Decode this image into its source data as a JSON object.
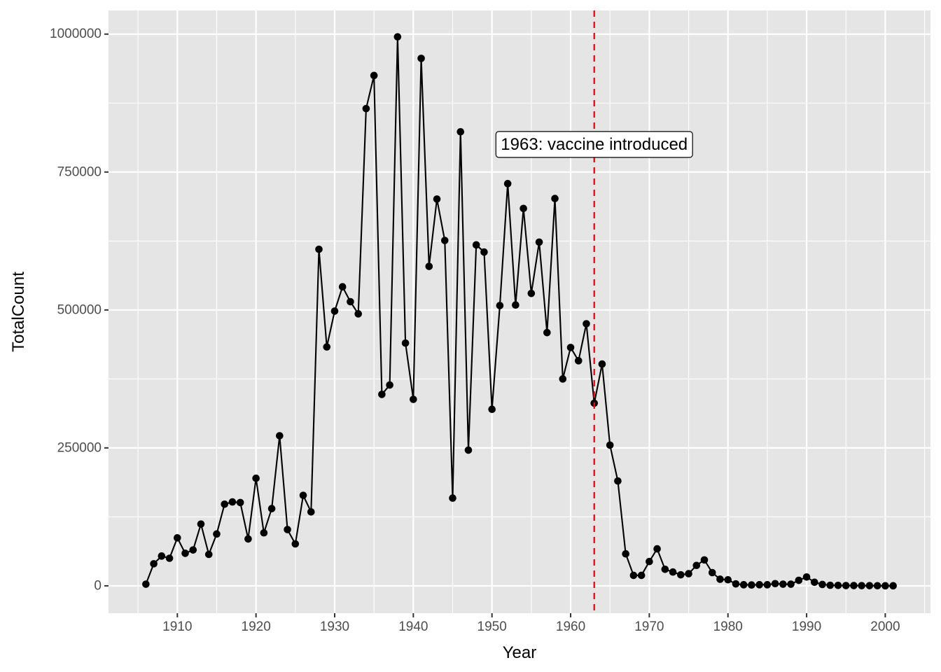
{
  "chart_data": {
    "type": "line",
    "title": "",
    "xlabel": "Year",
    "ylabel": "TotalCount",
    "xlim": [
      1901.25,
      2005.75
    ],
    "ylim": [
      -49590,
      1042800
    ],
    "x_ticks": [
      1910,
      1920,
      1930,
      1940,
      1950,
      1960,
      1970,
      1980,
      1990,
      2000
    ],
    "x_tick_labels": [
      "1910",
      "1920",
      "1930",
      "1940",
      "1950",
      "1960",
      "1970",
      "1980",
      "1990",
      "2000"
    ],
    "y_ticks": [
      0,
      250000,
      500000,
      750000,
      1000000
    ],
    "y_tick_labels": [
      "0",
      "250000",
      "500000",
      "750000",
      "1000000"
    ],
    "grid": true,
    "legend": "none",
    "colors": {
      "panel_bg": "#e5e5e5",
      "grid": "#ffffff",
      "line": "#000000",
      "point": "#000000",
      "vline": "#ff0000",
      "annotation_fill": "#ffffff",
      "annotation_border": "#000000"
    },
    "series": [
      {
        "x": [
          1906,
          1907,
          1908,
          1909,
          1910,
          1911,
          1912,
          1913,
          1914,
          1915,
          1916,
          1917,
          1918,
          1919,
          1920,
          1921,
          1922,
          1923,
          1924,
          1925,
          1926,
          1927,
          1928,
          1929,
          1930,
          1931,
          1932,
          1933,
          1934,
          1935,
          1936,
          1937,
          1938,
          1939,
          1940,
          1941,
          1942,
          1943,
          1944,
          1945,
          1946,
          1947,
          1948,
          1949,
          1950,
          1951,
          1952,
          1953,
          1954,
          1955,
          1956,
          1957,
          1958,
          1959,
          1960,
          1961,
          1962,
          1963,
          1964,
          1965,
          1966,
          1967,
          1968,
          1969,
          1970,
          1971,
          1972,
          1973,
          1974,
          1975,
          1976,
          1977,
          1978,
          1979,
          1980,
          1981,
          1982,
          1983,
          1984,
          1985,
          1986,
          1987,
          1988,
          1989,
          1990,
          1991,
          1992,
          1993,
          1994,
          1995,
          1996,
          1997,
          1998,
          1999,
          2000,
          2001
        ],
        "values": [
          3000,
          40000,
          54000,
          50000,
          87000,
          59000,
          65000,
          112000,
          57000,
          94000,
          148000,
          152000,
          151000,
          85000,
          195000,
          96000,
          140000,
          272000,
          102000,
          76000,
          164000,
          134000,
          610000,
          433000,
          498000,
          542000,
          515000,
          493000,
          865000,
          925000,
          347000,
          364000,
          995000,
          440000,
          338000,
          956000,
          579000,
          701000,
          626000,
          159000,
          823000,
          246000,
          618000,
          605000,
          320000,
          508000,
          729000,
          509000,
          684000,
          530000,
          623000,
          459000,
          702000,
          375000,
          432000,
          408000,
          475000,
          331000,
          402000,
          255000,
          190000,
          58000,
          19000,
          19000,
          44000,
          67000,
          30000,
          25000,
          20000,
          22000,
          37000,
          47000,
          24000,
          12000,
          11000,
          3500,
          2000,
          1500,
          2000,
          2000,
          4000,
          3000,
          3000,
          10000,
          16000,
          6500,
          2500,
          1000,
          800,
          500,
          500,
          300,
          300,
          200,
          100,
          100
        ]
      }
    ],
    "annotations": [
      {
        "vline_x": 1963,
        "label": "1963: vaccine introduced",
        "label_x": 1963,
        "label_y": 800000
      }
    ]
  }
}
